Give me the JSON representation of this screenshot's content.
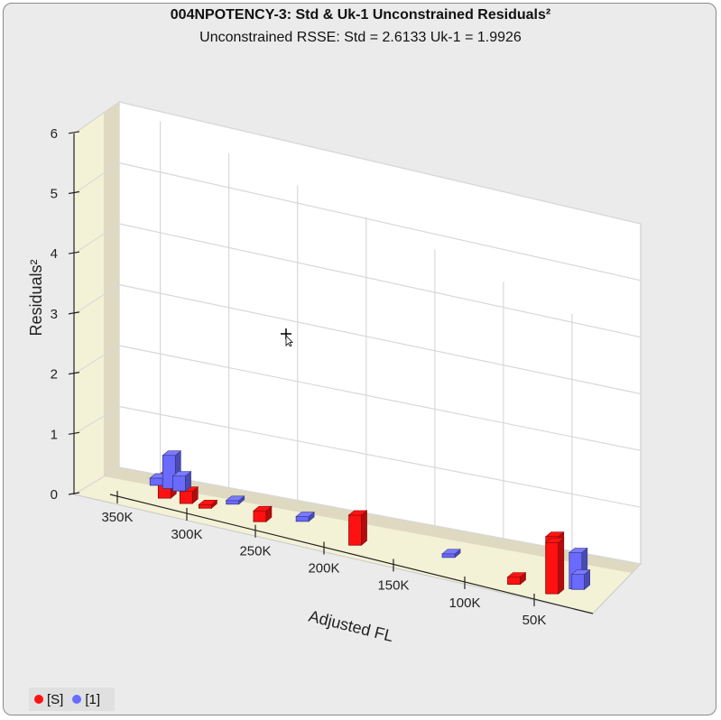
{
  "chart_data": {
    "type": "bar",
    "title": "004NPOTENCY-3:  Std & Uk-1  Unconstrained Residuals²",
    "subtitle": "Unconstrained RSSE: Std = 2.6133  Uk-1 = 1.9926",
    "xlabel": "Adjusted FL",
    "ylabel": "Residuals²",
    "x_ticks": [
      {
        "value": 350000,
        "label": "350K"
      },
      {
        "value": 300000,
        "label": "300K"
      },
      {
        "value": 250000,
        "label": "250K"
      },
      {
        "value": 200000,
        "label": "200K"
      },
      {
        "value": 150000,
        "label": "150K"
      },
      {
        "value": 100000,
        "label": "100K"
      },
      {
        "value": 50000,
        "label": "50K"
      }
    ],
    "y_ticks": [
      {
        "value": 0,
        "label": "0"
      },
      {
        "value": 1,
        "label": "1"
      },
      {
        "value": 2,
        "label": "2"
      },
      {
        "value": 3,
        "label": "3"
      },
      {
        "value": 4,
        "label": "4"
      },
      {
        "value": 5,
        "label": "5"
      },
      {
        "value": 6,
        "label": "6"
      }
    ],
    "xlim": [
      380000,
      0
    ],
    "ylim": [
      0,
      6
    ],
    "grid": true,
    "legend_position": "bottom-left",
    "series": [
      {
        "name": "[S]",
        "color": "#ff1111",
        "points": [
          {
            "x": 335000,
            "y": 0.38
          },
          {
            "x": 318000,
            "y": 0.2
          },
          {
            "x": 303000,
            "y": 0.05
          },
          {
            "x": 260000,
            "y": 0.18
          },
          {
            "x": 185000,
            "y": 0.5
          },
          {
            "x": 60000,
            "y": 0.12
          },
          {
            "x": 30000,
            "y": 0.95
          },
          {
            "x": 30000,
            "y": 0.85
          }
        ]
      },
      {
        "name": "[1]",
        "color": "#6a6aff",
        "points": [
          {
            "x": 350000,
            "y": 0.12
          },
          {
            "x": 340000,
            "y": 0.55
          },
          {
            "x": 332000,
            "y": 0.25
          },
          {
            "x": 290000,
            "y": 0.05
          },
          {
            "x": 235000,
            "y": 0.08
          },
          {
            "x": 120000,
            "y": 0.05
          },
          {
            "x": 20000,
            "y": 0.6
          },
          {
            "x": 18000,
            "y": 0.25
          }
        ]
      }
    ]
  },
  "legend": [
    {
      "label": "[S]",
      "color": "#ff1111"
    },
    {
      "label": "[1]",
      "color": "#6a6aff"
    }
  ]
}
